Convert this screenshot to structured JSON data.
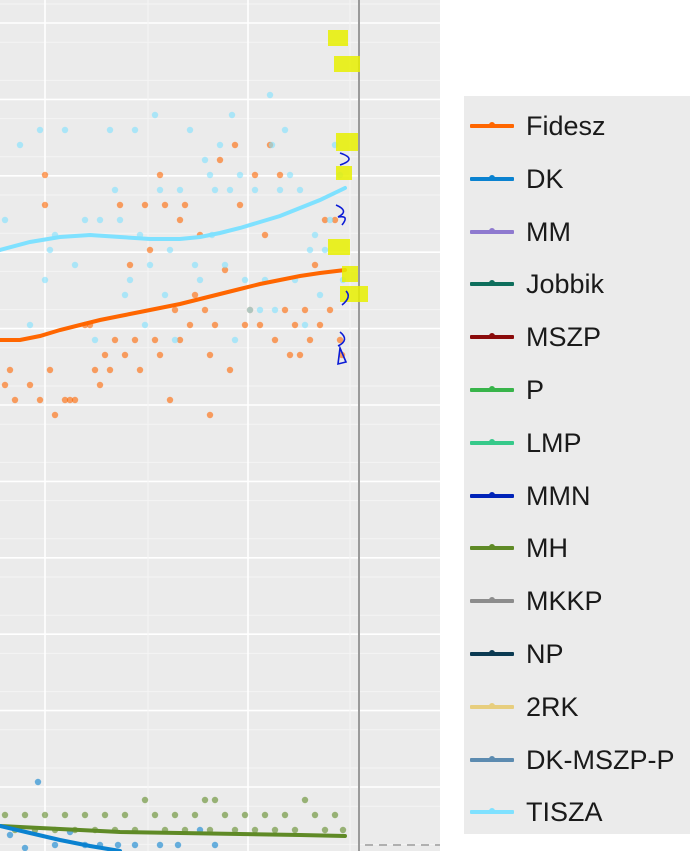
{
  "chart_data": {
    "type": "scatter",
    "title": "",
    "xlabel": "",
    "ylabel": "",
    "ylim": [
      -1,
      55
    ],
    "xlim": [
      0,
      360
    ],
    "grid": true,
    "legend_position": "right",
    "series": [
      {
        "name": "Fidesz",
        "color": "#FF6600",
        "points": [
          [
            5,
            385
          ],
          [
            10,
            370
          ],
          [
            15,
            400
          ],
          [
            30,
            385
          ],
          [
            40,
            400
          ],
          [
            45,
            175
          ],
          [
            45,
            205
          ],
          [
            50,
            370
          ],
          [
            55,
            415
          ],
          [
            65,
            400
          ],
          [
            70,
            400
          ],
          [
            75,
            400
          ],
          [
            85,
            325
          ],
          [
            90,
            325
          ],
          [
            95,
            370
          ],
          [
            100,
            385
          ],
          [
            105,
            355
          ],
          [
            110,
            370
          ],
          [
            115,
            340
          ],
          [
            120,
            205
          ],
          [
            125,
            355
          ],
          [
            130,
            265
          ],
          [
            135,
            340
          ],
          [
            140,
            370
          ],
          [
            145,
            205
          ],
          [
            150,
            250
          ],
          [
            155,
            340
          ],
          [
            160,
            175
          ],
          [
            160,
            355
          ],
          [
            165,
            205
          ],
          [
            170,
            400
          ],
          [
            175,
            310
          ],
          [
            180,
            220
          ],
          [
            180,
            340
          ],
          [
            185,
            205
          ],
          [
            190,
            325
          ],
          [
            195,
            295
          ],
          [
            200,
            235
          ],
          [
            205,
            310
          ],
          [
            210,
            355
          ],
          [
            210,
            415
          ],
          [
            215,
            325
          ],
          [
            220,
            160
          ],
          [
            225,
            270
          ],
          [
            230,
            370
          ],
          [
            235,
            145
          ],
          [
            240,
            205
          ],
          [
            245,
            325
          ],
          [
            250,
            310
          ],
          [
            255,
            175
          ],
          [
            260,
            325
          ],
          [
            265,
            235
          ],
          [
            270,
            145
          ],
          [
            275,
            340
          ],
          [
            280,
            175
          ],
          [
            285,
            310
          ],
          [
            290,
            355
          ],
          [
            295,
            325
          ],
          [
            300,
            355
          ],
          [
            305,
            310
          ],
          [
            310,
            340
          ],
          [
            315,
            265
          ],
          [
            320,
            325
          ],
          [
            325,
            220
          ],
          [
            330,
            310
          ],
          [
            335,
            220
          ],
          [
            340,
            340
          ],
          [
            342,
            355
          ]
        ],
        "trend": [
          [
            0,
            340
          ],
          [
            20,
            340
          ],
          [
            40,
            336
          ],
          [
            60,
            330
          ],
          [
            80,
            325
          ],
          [
            100,
            320
          ],
          [
            120,
            316
          ],
          [
            140,
            312
          ],
          [
            160,
            308
          ],
          [
            180,
            304
          ],
          [
            200,
            299
          ],
          [
            220,
            294
          ],
          [
            240,
            289
          ],
          [
            260,
            284
          ],
          [
            280,
            280
          ],
          [
            300,
            276
          ],
          [
            320,
            273
          ],
          [
            345,
            270
          ]
        ]
      },
      {
        "name": "TISZA",
        "color": "#7FE1FF",
        "points": [
          [
            5,
            220
          ],
          [
            20,
            145
          ],
          [
            30,
            325
          ],
          [
            40,
            130
          ],
          [
            45,
            280
          ],
          [
            50,
            250
          ],
          [
            55,
            235
          ],
          [
            65,
            130
          ],
          [
            75,
            265
          ],
          [
            85,
            220
          ],
          [
            95,
            340
          ],
          [
            100,
            220
          ],
          [
            110,
            130
          ],
          [
            115,
            190
          ],
          [
            120,
            220
          ],
          [
            125,
            295
          ],
          [
            130,
            280
          ],
          [
            135,
            130
          ],
          [
            140,
            235
          ],
          [
            145,
            325
          ],
          [
            150,
            265
          ],
          [
            155,
            115
          ],
          [
            160,
            190
          ],
          [
            165,
            295
          ],
          [
            170,
            250
          ],
          [
            175,
            340
          ],
          [
            180,
            190
          ],
          [
            190,
            130
          ],
          [
            195,
            265
          ],
          [
            200,
            280
          ],
          [
            205,
            160
          ],
          [
            210,
            175
          ],
          [
            212,
            235
          ],
          [
            215,
            190
          ],
          [
            220,
            145
          ],
          [
            225,
            265
          ],
          [
            230,
            190
          ],
          [
            232,
            115
          ],
          [
            235,
            340
          ],
          [
            240,
            175
          ],
          [
            245,
            280
          ],
          [
            250,
            310
          ],
          [
            255,
            190
          ],
          [
            260,
            310
          ],
          [
            265,
            280
          ],
          [
            270,
            95
          ],
          [
            272,
            145
          ],
          [
            275,
            310
          ],
          [
            280,
            190
          ],
          [
            285,
            130
          ],
          [
            290,
            175
          ],
          [
            295,
            280
          ],
          [
            300,
            190
          ],
          [
            305,
            325
          ],
          [
            310,
            250
          ],
          [
            315,
            235
          ],
          [
            320,
            295
          ],
          [
            325,
            250
          ],
          [
            330,
            220
          ],
          [
            335,
            145
          ],
          [
            340,
            175
          ],
          [
            343,
            280
          ]
        ],
        "trend": [
          [
            0,
            250
          ],
          [
            30,
            242
          ],
          [
            60,
            237
          ],
          [
            90,
            235
          ],
          [
            120,
            237
          ],
          [
            150,
            239
          ],
          [
            180,
            239
          ],
          [
            200,
            237
          ],
          [
            220,
            233
          ],
          [
            240,
            228
          ],
          [
            260,
            222
          ],
          [
            280,
            216
          ],
          [
            300,
            208
          ],
          [
            320,
            200
          ],
          [
            345,
            188
          ]
        ]
      },
      {
        "name": "MH",
        "color": "#5F8A26",
        "points": [
          [
            5,
            815
          ],
          [
            15,
            830
          ],
          [
            25,
            815
          ],
          [
            35,
            830
          ],
          [
            45,
            815
          ],
          [
            55,
            830
          ],
          [
            65,
            815
          ],
          [
            75,
            830
          ],
          [
            85,
            815
          ],
          [
            95,
            830
          ],
          [
            105,
            815
          ],
          [
            115,
            830
          ],
          [
            125,
            815
          ],
          [
            135,
            830
          ],
          [
            145,
            800
          ],
          [
            155,
            815
          ],
          [
            165,
            830
          ],
          [
            175,
            815
          ],
          [
            185,
            830
          ],
          [
            195,
            815
          ],
          [
            205,
            800
          ],
          [
            210,
            830
          ],
          [
            215,
            800
          ],
          [
            225,
            815
          ],
          [
            235,
            830
          ],
          [
            245,
            815
          ],
          [
            255,
            830
          ],
          [
            265,
            815
          ],
          [
            275,
            830
          ],
          [
            285,
            815
          ],
          [
            295,
            830
          ],
          [
            305,
            800
          ],
          [
            315,
            815
          ],
          [
            325,
            830
          ],
          [
            335,
            815
          ],
          [
            343,
            830
          ]
        ],
        "trend": [
          [
            0,
            826
          ],
          [
            60,
            829
          ],
          [
            120,
            832
          ],
          [
            180,
            833
          ],
          [
            240,
            834
          ],
          [
            300,
            835
          ],
          [
            345,
            836
          ]
        ]
      },
      {
        "name": "DK",
        "color": "#0A82D0",
        "points": [
          [
            10,
            835
          ],
          [
            25,
            848
          ],
          [
            38,
            782
          ],
          [
            55,
            845
          ],
          [
            70,
            832
          ],
          [
            85,
            845
          ],
          [
            100,
            845
          ],
          [
            118,
            845
          ],
          [
            135,
            845
          ],
          [
            160,
            845
          ],
          [
            178,
            845
          ],
          [
            200,
            830
          ],
          [
            215,
            845
          ]
        ],
        "trend": [
          [
            0,
            826
          ],
          [
            30,
            833
          ],
          [
            60,
            840
          ],
          [
            90,
            846
          ],
          [
            120,
            851
          ]
        ]
      }
    ]
  },
  "legend": {
    "items": [
      {
        "label": "Fidesz",
        "color": "#FF6600"
      },
      {
        "label": "DK",
        "color": "#0A82D0"
      },
      {
        "label": "MM",
        "color": "#8E79CF"
      },
      {
        "label": "Jobbik",
        "color": "#0E6E5C"
      },
      {
        "label": "MSZP",
        "color": "#8A0B0B"
      },
      {
        "label": "P",
        "color": "#38B44A"
      },
      {
        "label": "LMP",
        "color": "#36C98A"
      },
      {
        "label": "MMN",
        "color": "#0023B8"
      },
      {
        "label": "MH",
        "color": "#5F8A26"
      },
      {
        "label": "MKKP",
        "color": "#8C8C8C"
      },
      {
        "label": "NP",
        "color": "#0B3A52"
      },
      {
        "label": "2RK",
        "color": "#E7CE7E"
      },
      {
        "label": "DK-MSZP-P",
        "color": "#5C8BB0"
      },
      {
        "label": "TISZA",
        "color": "#7FE1FF"
      }
    ]
  }
}
